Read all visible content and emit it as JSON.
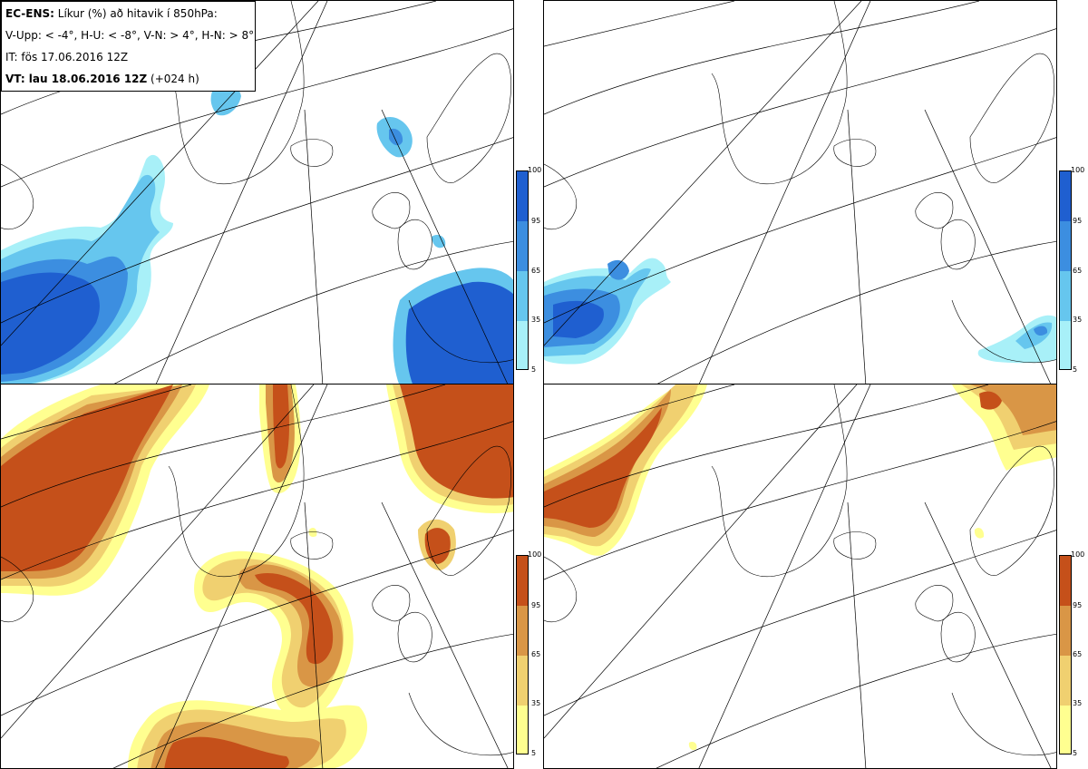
{
  "info": {
    "model": "EC-ENS:",
    "desc": "Líkur (%) að hitavik í 850hPa:",
    "thresholds": "V-Upp: < -4°, H-U: < -8°, V-N: > 4°, H-N: > 8°",
    "it": "IT: fös 17.06.2016 12Z",
    "vt_label": "VT: lau 18.06.2016 12Z",
    "vt_offset": "(+024 h)"
  },
  "colorbar": {
    "ticks": [
      "100",
      "95",
      "65",
      "35",
      "5"
    ],
    "cold_colors": [
      "#1f5fd0",
      "#3c8ee0",
      "#66c6ee",
      "#a8f0f8"
    ],
    "warm_colors": [
      "#c5501a",
      "#d99646",
      "#f0d070",
      "#ffff90"
    ]
  },
  "colors": {
    "cold_dark": "#1f5fd0",
    "cold_mid": "#3c8ee0",
    "cold_light": "#66c6ee",
    "cold_faint": "#a8f0f8",
    "warm_dark": "#c5501a",
    "warm_mid": "#d99646",
    "warm_light": "#f0d070",
    "warm_faint": "#ffff90"
  }
}
